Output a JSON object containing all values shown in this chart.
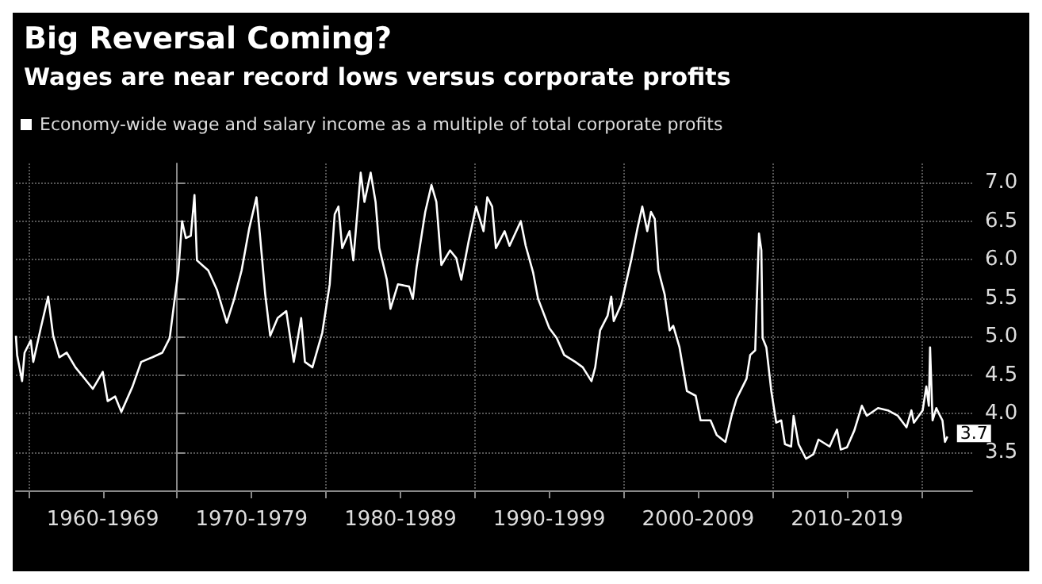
{
  "chart_data": {
    "type": "line",
    "title": "Big Reversal Coming?",
    "subtitle": "Wages are near record lows versus corporate profits",
    "x": [
      "1959-03",
      "1959-04",
      "1959-08",
      "1959-10",
      "1960-03",
      "1960-05",
      "1960-11",
      "1961-05",
      "1961-09",
      "1962-02",
      "1962-08",
      "1963-03",
      "1963-09",
      "1964-05",
      "1965-01",
      "1965-05",
      "1965-11",
      "1966-04",
      "1967-01",
      "1967-08",
      "1968-05",
      "1969-01",
      "1969-07",
      "1969-11",
      "1970-02",
      "1970-05",
      "1970-08",
      "1970-12",
      "1971-03",
      "1971-05",
      "1972-02",
      "1972-09",
      "1973-05",
      "1973-11",
      "1974-05",
      "1974-11",
      "1975-05",
      "1975-08",
      "1975-12",
      "1976-04",
      "1976-10",
      "1977-05",
      "1977-11",
      "1978-05",
      "1978-08",
      "1979-02",
      "1979-10",
      "1980-04",
      "1980-08",
      "1980-11",
      "1981-02",
      "1981-08",
      "1981-11",
      "1982-05",
      "1982-08",
      "1983-01",
      "1983-05",
      "1983-08",
      "1984-02",
      "1984-05",
      "1984-11",
      "1985-08",
      "1985-11",
      "1986-02",
      "1986-09",
      "1987-02",
      "1987-06",
      "1987-10",
      "1988-05",
      "1988-10",
      "1989-02",
      "1989-08",
      "1990-02",
      "1990-08",
      "1990-11",
      "1991-03",
      "1991-06",
      "1992-01",
      "1992-05",
      "1993-02",
      "1993-06",
      "1993-12",
      "1994-04",
      "1995-01",
      "1995-07",
      "1996-01",
      "1996-10",
      "1997-04",
      "1997-11",
      "1998-02",
      "1998-06",
      "1998-12",
      "1999-03",
      "1999-05",
      "1999-11",
      "2000-07",
      "2000-12",
      "2001-04",
      "2001-08",
      "2001-11",
      "2002-02",
      "2002-05",
      "2002-10",
      "2003-02",
      "2003-05",
      "2003-10",
      "2004-04",
      "2004-11",
      "2005-03",
      "2005-11",
      "2006-04",
      "2006-11",
      "2007-04",
      "2007-08",
      "2008-04",
      "2008-07",
      "2008-11",
      "2009-02",
      "2009-04",
      "2009-05",
      "2009-08",
      "2009-12",
      "2010-04",
      "2010-08",
      "2010-11",
      "2011-04",
      "2011-06",
      "2011-10",
      "2012-04",
      "2012-10",
      "2013-02",
      "2013-11",
      "2014-05",
      "2014-08",
      "2015-01",
      "2015-07",
      "2016-01",
      "2016-05",
      "2017-02",
      "2017-10",
      "2018-06",
      "2019-01",
      "2019-05",
      "2019-07",
      "2020-02",
      "2020-05",
      "2020-07",
      "2020-08",
      "2020-10",
      "2021-01",
      "2021-04",
      "2021-06",
      "2021-08",
      "2021-10"
    ],
    "series": [
      {
        "name": "Economy-wide wage and salary income as a multiple of total corporate profits",
        "color": "#ffffff",
        "values": [
          5.01,
          4.76,
          4.42,
          4.79,
          4.95,
          4.67,
          5.11,
          5.52,
          5.01,
          4.73,
          4.79,
          4.6,
          4.48,
          4.32,
          4.54,
          4.16,
          4.22,
          4.02,
          4.35,
          4.67,
          4.73,
          4.79,
          4.98,
          5.49,
          5.86,
          6.5,
          6.28,
          6.31,
          6.84,
          5.99,
          5.86,
          5.61,
          5.18,
          5.49,
          5.86,
          6.4,
          6.81,
          6.28,
          5.55,
          5.01,
          5.24,
          5.33,
          4.67,
          5.24,
          4.67,
          4.6,
          5.05,
          5.68,
          6.59,
          6.69,
          6.15,
          6.37,
          5.99,
          7.13,
          6.75,
          7.13,
          6.75,
          6.15,
          5.74,
          5.36,
          5.68,
          5.65,
          5.49,
          5.9,
          6.62,
          6.97,
          6.75,
          5.93,
          6.12,
          6.02,
          5.74,
          6.24,
          6.69,
          6.37,
          6.81,
          6.69,
          6.15,
          6.37,
          6.18,
          6.5,
          6.18,
          5.83,
          5.49,
          5.11,
          4.98,
          4.76,
          4.67,
          4.6,
          4.42,
          4.6,
          5.08,
          5.27,
          5.52,
          5.2,
          5.42,
          5.99,
          6.4,
          6.69,
          6.37,
          6.62,
          6.53,
          5.86,
          5.55,
          5.08,
          5.14,
          4.86,
          4.29,
          4.23,
          3.91,
          3.91,
          3.72,
          3.63,
          3.97,
          4.19,
          4.45,
          4.76,
          4.82,
          6.34,
          6.12,
          4.98,
          4.86,
          4.29,
          3.88,
          3.91,
          3.6,
          3.57,
          3.97,
          3.6,
          3.41,
          3.47,
          3.66,
          3.57,
          3.79,
          3.53,
          3.56,
          3.78,
          4.1,
          3.97,
          4.07,
          4.04,
          3.97,
          3.82,
          4.04,
          3.88,
          4.04,
          4.35,
          4.1,
          4.86,
          3.91,
          4.07,
          3.97,
          3.91,
          3.63,
          3.7
        ]
      }
    ],
    "annotations": [
      {
        "text": "3.7",
        "x": "2021-10",
        "y": 3.7
      }
    ],
    "xlim": [
      "1959-03",
      "2023-06"
    ],
    "xticks": [
      {
        "value": "1960-01",
        "label": null
      },
      {
        "value": "1965-01",
        "label": "1960-1969"
      },
      {
        "value": "1970-01",
        "label": null
      },
      {
        "value": "1975-01",
        "label": "1970-1979"
      },
      {
        "value": "1980-01",
        "label": null
      },
      {
        "value": "1985-01",
        "label": "1980-1989"
      },
      {
        "value": "1990-01",
        "label": null
      },
      {
        "value": "1995-01",
        "label": "1990-1999"
      },
      {
        "value": "2000-01",
        "label": null
      },
      {
        "value": "2005-01",
        "label": "2000-2009"
      },
      {
        "value": "2010-01",
        "label": null
      },
      {
        "value": "2015-01",
        "label": "2010-2019"
      },
      {
        "value": "2020-01",
        "label": null
      }
    ],
    "ylim": [
      3.0,
      7.25
    ],
    "yticks": [
      {
        "value": 3.5,
        "label": "3.5"
      },
      {
        "value": 4,
        "label": "4.0"
      },
      {
        "value": 4.5,
        "label": "4.5"
      },
      {
        "value": 5,
        "label": "5.0"
      },
      {
        "value": 5.5,
        "label": "5.5"
      },
      {
        "value": 6,
        "label": "6.0"
      },
      {
        "value": 6.5,
        "label": "6.5"
      },
      {
        "value": 7,
        "label": "7.0"
      }
    ],
    "grid": true,
    "legend": "top left",
    "marker": "none",
    "line_style": "solid"
  }
}
